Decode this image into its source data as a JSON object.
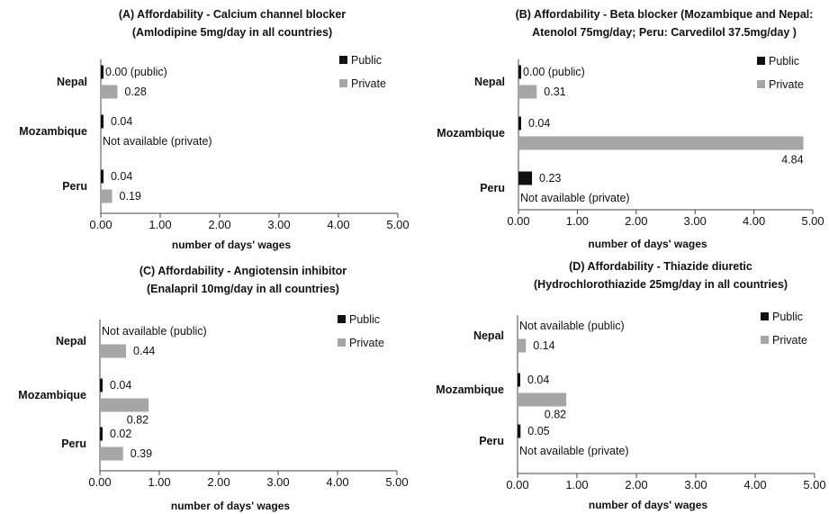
{
  "chart_data": [
    {
      "type": "bar",
      "orientation": "horizontal",
      "title": "(A) Affordability - Calcium channel blocker",
      "subtitle": "(Amlodipine 5mg/day in all countries)",
      "xlabel": "number of days' wages",
      "xlim": [
        0,
        5
      ],
      "xticks": [
        "0.00",
        "1.00",
        "2.00",
        "3.00",
        "4.00",
        "5.00"
      ],
      "categories": [
        "Nepal",
        "Mozambique",
        "Peru"
      ],
      "series": [
        {
          "name": "Public",
          "color": "#111111",
          "values": [
            0.0,
            0.04,
            0.04
          ],
          "labels": [
            "0.00 (public)",
            "0.04",
            "0.04"
          ]
        },
        {
          "name": "Private",
          "color": "#a6a6a6",
          "values": [
            0.28,
            null,
            0.19
          ],
          "labels": [
            "0.28",
            "Not available (private)",
            "0.19"
          ]
        }
      ],
      "legend": "top-right"
    },
    {
      "type": "bar",
      "orientation": "horizontal",
      "title": "(B) Affordability - Beta blocker (Mozambique and Nepal:",
      "subtitle": "Atenolol 75mg/day; Peru: Carvedilol 37.5mg/day )",
      "xlabel": "number of days' wages",
      "xlim": [
        0,
        5
      ],
      "xticks": [
        "0.00",
        "1.00",
        "2.00",
        "3.00",
        "4.00",
        "5.00"
      ],
      "categories": [
        "Nepal",
        "Mozambique",
        "Peru"
      ],
      "series": [
        {
          "name": "Public",
          "color": "#111111",
          "values": [
            0.0,
            0.04,
            0.23
          ],
          "labels": [
            "0.00 (public)",
            "0.04",
            "0.23"
          ]
        },
        {
          "name": "Private",
          "color": "#a6a6a6",
          "values": [
            0.31,
            4.84,
            null
          ],
          "labels": [
            "0.31",
            "4.84",
            "Not available (private)"
          ]
        }
      ],
      "legend": "top-right"
    },
    {
      "type": "bar",
      "orientation": "horizontal",
      "title": "(C) Affordability - Angiotensin inhibitor",
      "subtitle": "(Enalapril 10mg/day in all countries)",
      "xlabel": "number of days' wages",
      "xlim": [
        0,
        5
      ],
      "xticks": [
        "0.00",
        "1.00",
        "2.00",
        "3.00",
        "4.00",
        "5.00"
      ],
      "categories": [
        "Nepal",
        "Mozambique",
        "Peru"
      ],
      "series": [
        {
          "name": "Public",
          "color": "#111111",
          "values": [
            null,
            0.04,
            0.02
          ],
          "labels": [
            "Not available (public)",
            "0.04",
            "0.02"
          ]
        },
        {
          "name": "Private",
          "color": "#a6a6a6",
          "values": [
            0.44,
            0.82,
            0.39
          ],
          "labels": [
            "0.44",
            "0.82",
            "0.39"
          ]
        }
      ],
      "legend": "top-right"
    },
    {
      "type": "bar",
      "orientation": "horizontal",
      "title": "(D) Affordability - Thiazide diuretic",
      "subtitle": "(Hydrochlorothiazide 25mg/day in all countries)",
      "xlabel": "number of days' wages",
      "xlim": [
        0,
        5
      ],
      "xticks": [
        "0.00",
        "1.00",
        "2.00",
        "3.00",
        "4.00",
        "5.00"
      ],
      "categories": [
        "Nepal",
        "Mozambique",
        "Peru"
      ],
      "series": [
        {
          "name": "Public",
          "color": "#111111",
          "values": [
            null,
            0.04,
            0.05
          ],
          "labels": [
            "Not available (public)",
            "0.04",
            "0.05"
          ]
        },
        {
          "name": "Private",
          "color": "#a6a6a6",
          "values": [
            0.14,
            0.82,
            null
          ],
          "labels": [
            "0.14",
            "0.82",
            "Not available (private)"
          ]
        }
      ],
      "legend": "top-right"
    }
  ]
}
